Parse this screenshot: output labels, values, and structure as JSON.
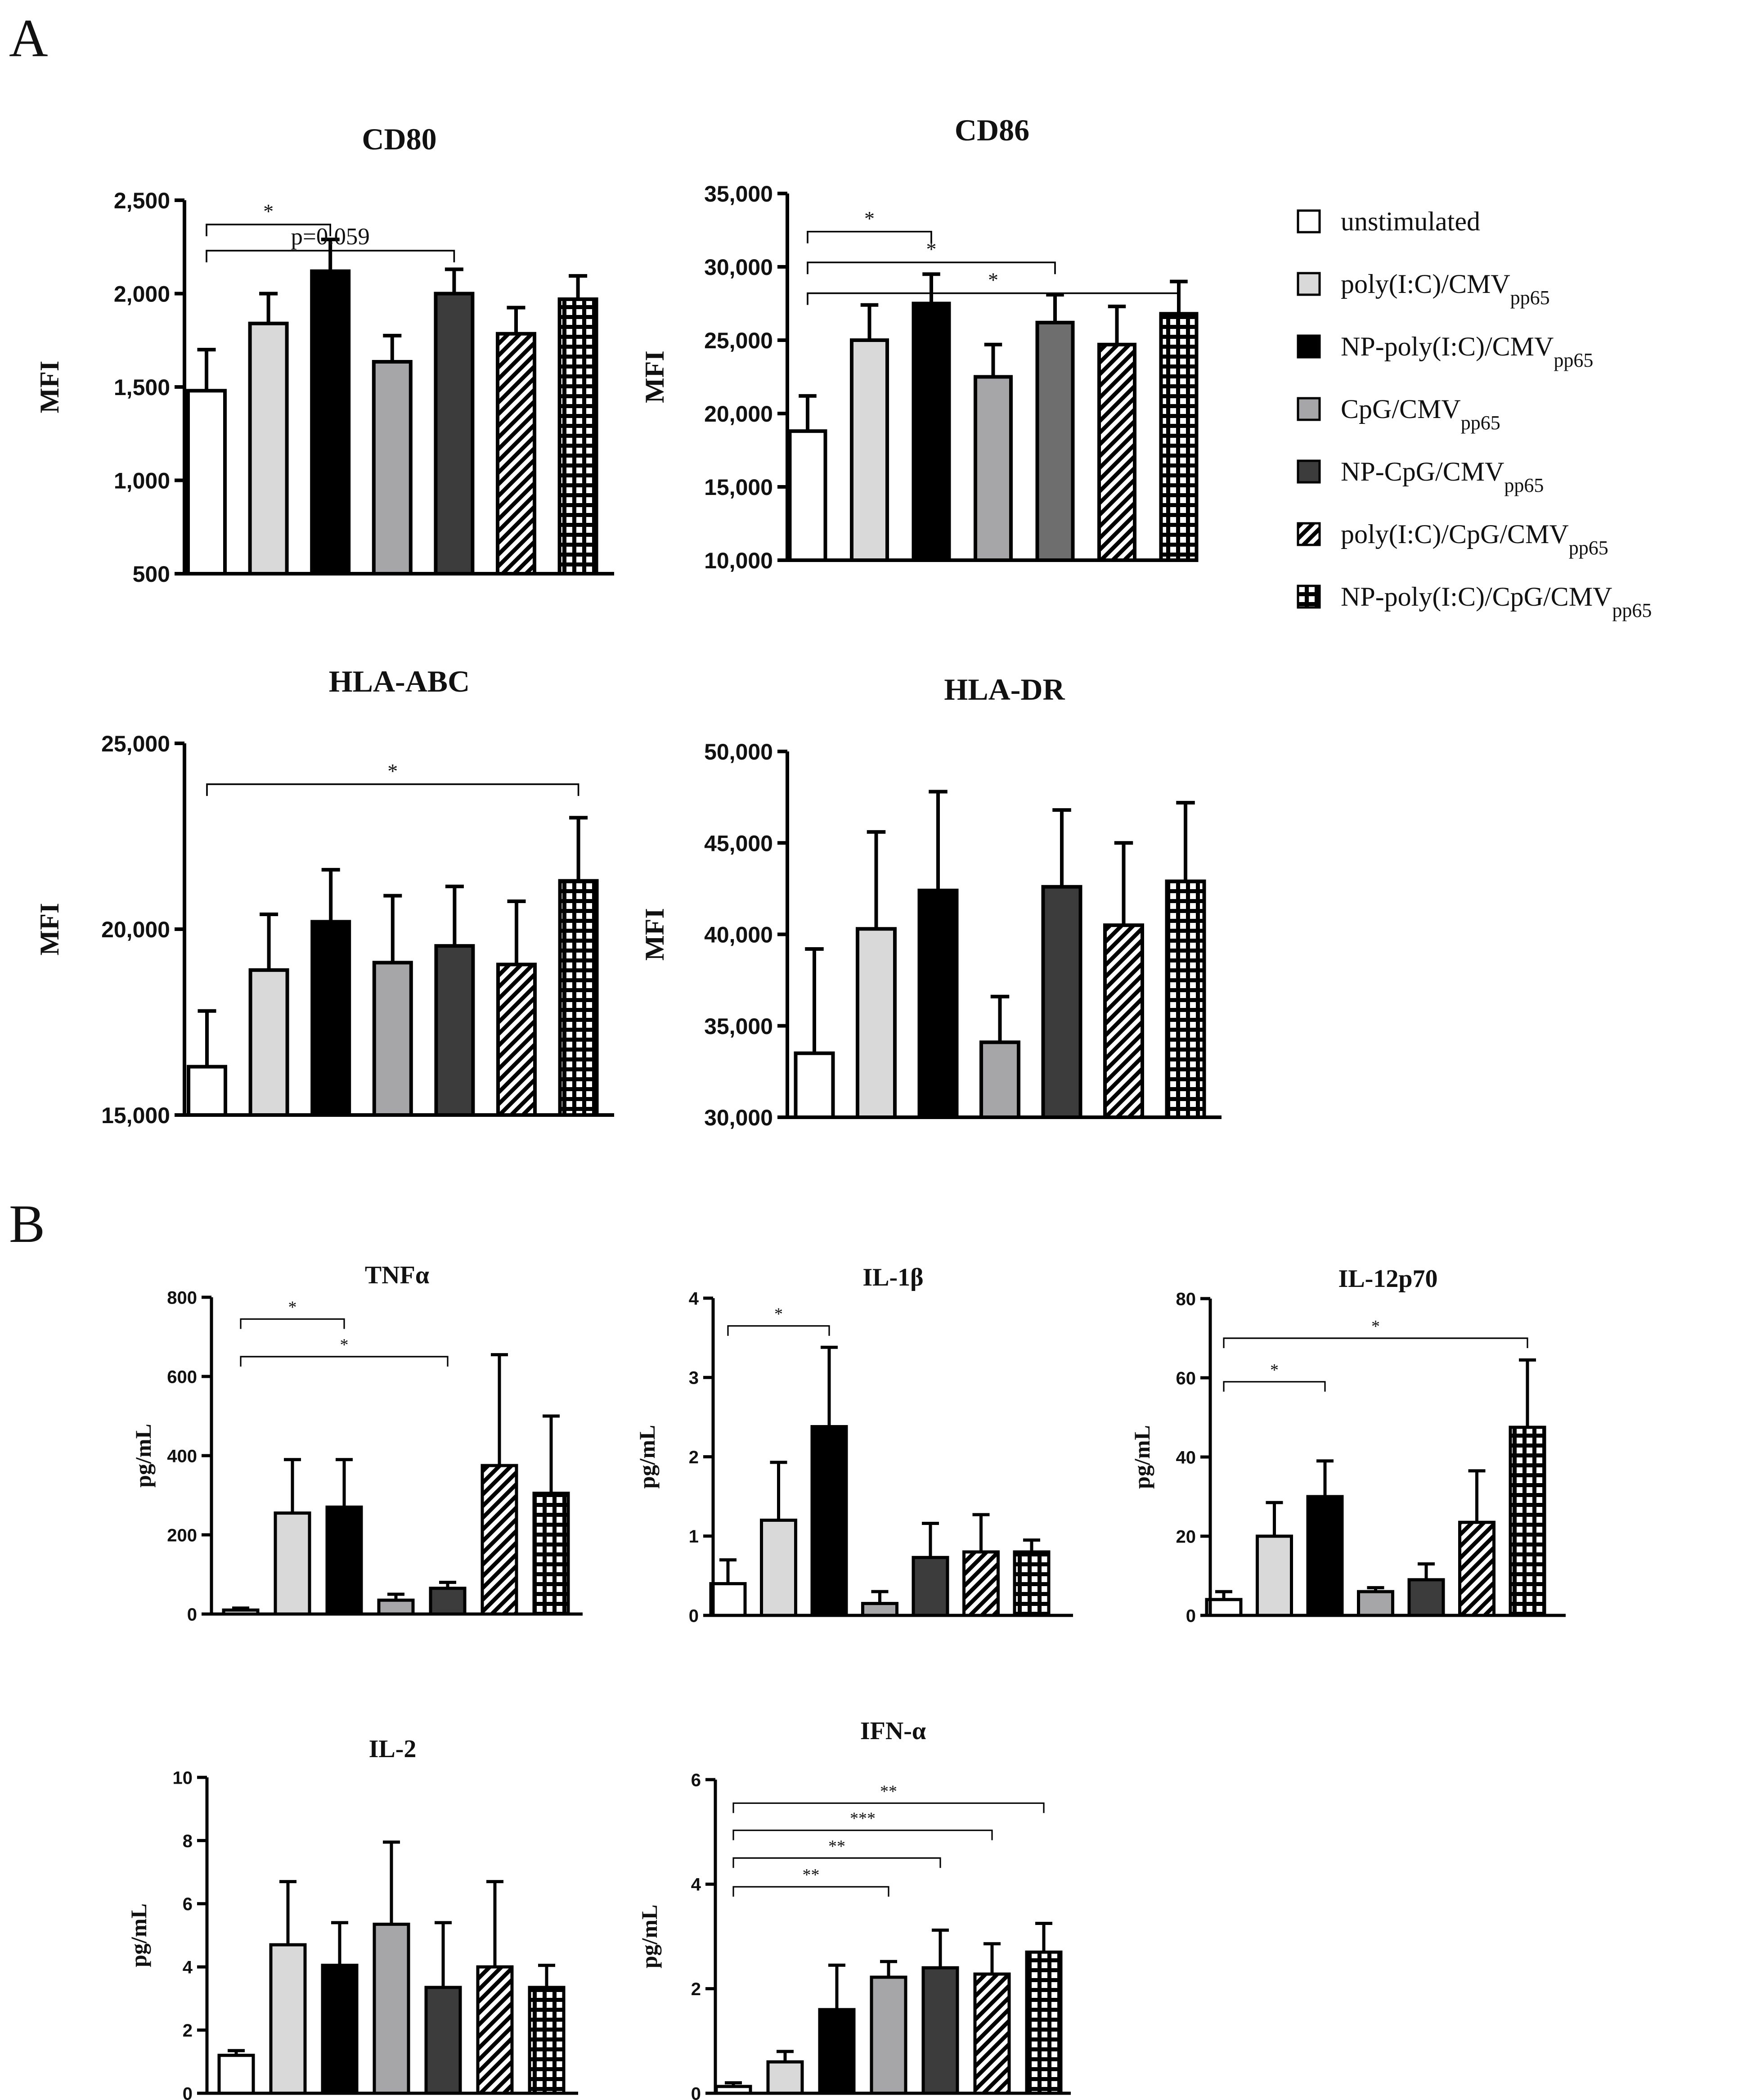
{
  "figure": {
    "panel_labels": [
      "A",
      "B"
    ],
    "legend": [
      {
        "id": "unstim",
        "label": "unstimulated",
        "sub": ""
      },
      {
        "id": "polyIC",
        "label": "poly(I:C)/CMV",
        "sub": "pp65"
      },
      {
        "id": "np_polyIC",
        "label": "NP-poly(I:C)/CMV",
        "sub": "pp65"
      },
      {
        "id": "cpg",
        "label": "CpG/CMV",
        "sub": "pp65"
      },
      {
        "id": "np_cpg",
        "label": "NP-CpG/CMV",
        "sub": "pp65"
      },
      {
        "id": "polyIC_cpg",
        "label": "poly(I:C)/CpG/CMV",
        "sub": "pp65"
      },
      {
        "id": "np_polyIC_cpg",
        "label": "NP-poly(I:C)/CpG/CMV",
        "sub": "pp65"
      }
    ],
    "fills": {
      "unstim": "#ffffff",
      "polyIC": "#d9d9d9",
      "np_polyIC": "#000000",
      "cpg": "#a6a6a8",
      "np_cpg": "#3c3c3c",
      "np_cpg_cd86": "#6e6e6e",
      "polyIC_cpg": "hatch",
      "np_polyIC_cpg": "grid"
    }
  },
  "chart_data": [
    {
      "type": "bar",
      "panel": "A",
      "title": "CD80",
      "ylabel": "MFI",
      "ylim": [
        500,
        2500
      ],
      "yticks": [
        500,
        1000,
        1500,
        2000,
        2500
      ],
      "yticklabels": [
        "500",
        "1,000",
        "1,500",
        "2,000",
        "2,500"
      ],
      "values": [
        1480,
        1840,
        2120,
        1635,
        2000,
        1785,
        1970
      ],
      "errors": [
        220,
        160,
        170,
        140,
        130,
        140,
        125
      ],
      "annotations": [
        {
          "from": 0,
          "to": 2,
          "label": "*",
          "level": 2370
        },
        {
          "from": 0,
          "to": 4,
          "label": "p=0.059",
          "level": 2230
        }
      ]
    },
    {
      "type": "bar",
      "panel": "A",
      "title": "CD86",
      "ylabel": "MFI",
      "ylim": [
        10000,
        35000
      ],
      "yticks": [
        10000,
        15000,
        20000,
        25000,
        30000,
        35000
      ],
      "yticklabels": [
        "10,000",
        "15,000",
        "20,000",
        "25,000",
        "30,000",
        "35,000"
      ],
      "values": [
        18800,
        25000,
        27500,
        22500,
        26200,
        24700,
        26800
      ],
      "errors": [
        2400,
        2400,
        2000,
        2200,
        1900,
        2600,
        2200
      ],
      "annotations": [
        {
          "from": 0,
          "to": 2,
          "label": "*",
          "level": 32400
        },
        {
          "from": 0,
          "to": 4,
          "label": "*",
          "level": 30300
        },
        {
          "from": 0,
          "to": 6,
          "label": "*",
          "level": 28200
        }
      ]
    },
    {
      "type": "bar",
      "panel": "A",
      "title": "HLA-ABC",
      "ylabel": "MFI",
      "ylim": [
        15000,
        25000
      ],
      "yticks": [
        15000,
        20000,
        25000
      ],
      "yticklabels": [
        "15,000",
        "20,000",
        "25,000"
      ],
      "values": [
        16300,
        18900,
        20200,
        19100,
        19550,
        19050,
        21300
      ],
      "errors": [
        1500,
        1500,
        1400,
        1800,
        1600,
        1700,
        1700
      ],
      "annotations": [
        {
          "from": 0,
          "to": 6,
          "label": "*",
          "level": 23900
        }
      ]
    },
    {
      "type": "bar",
      "panel": "A",
      "title": "HLA-DR",
      "ylabel": "MFI",
      "ylim": [
        30000,
        50000
      ],
      "yticks": [
        30000,
        35000,
        40000,
        45000,
        50000
      ],
      "yticklabels": [
        "30,000",
        "35,000",
        "40,000",
        "45,000",
        "50,000"
      ],
      "values": [
        33500,
        40300,
        42400,
        34100,
        42600,
        40500,
        42900
      ],
      "errors": [
        5700,
        5300,
        5400,
        2500,
        4200,
        4500,
        4300
      ],
      "annotations": []
    },
    {
      "type": "bar",
      "panel": "B",
      "title": "TNFα",
      "ylabel": "pg/mL",
      "ylim": [
        0,
        800
      ],
      "yticks": [
        0,
        200,
        400,
        600,
        800
      ],
      "yticklabels": [
        "0",
        "200",
        "400",
        "600",
        "800"
      ],
      "values": [
        10,
        255,
        270,
        35,
        65,
        375,
        305
      ],
      "errors": [
        5,
        135,
        120,
        15,
        15,
        280,
        195
      ],
      "annotations": [
        {
          "from": 0,
          "to": 2,
          "label": "*",
          "level": 745
        },
        {
          "from": 0,
          "to": 4,
          "label": "*",
          "level": 650
        }
      ]
    },
    {
      "type": "bar",
      "panel": "B",
      "title": "IL-1β",
      "ylabel": "pg/mL",
      "ylim": [
        0,
        4
      ],
      "yticks": [
        0,
        1,
        2,
        3,
        4
      ],
      "yticklabels": [
        "0",
        "1",
        "2",
        "3",
        "4"
      ],
      "values": [
        0.4,
        1.2,
        2.38,
        0.15,
        0.73,
        0.8,
        0.8
      ],
      "errors": [
        0.3,
        0.73,
        1.0,
        0.15,
        0.43,
        0.47,
        0.15
      ],
      "annotations": [
        {
          "from": 0,
          "to": 2,
          "label": "*",
          "level": 3.65
        }
      ]
    },
    {
      "type": "bar",
      "panel": "B",
      "title": "IL-12p70",
      "ylabel": "pg/mL",
      "ylim": [
        0,
        80
      ],
      "yticks": [
        0,
        20,
        40,
        60,
        80
      ],
      "yticklabels": [
        "0",
        "20",
        "40",
        "60",
        "80"
      ],
      "values": [
        4,
        20,
        30,
        6,
        9,
        23.5,
        47.5
      ],
      "errors": [
        2,
        8.5,
        9,
        1,
        4,
        13,
        17
      ],
      "annotations": [
        {
          "from": 0,
          "to": 6,
          "label": "*",
          "level": 70
        },
        {
          "from": 0,
          "to": 2,
          "label": "*",
          "level": 59
        }
      ]
    },
    {
      "type": "bar",
      "panel": "B",
      "title": "IL-2",
      "ylabel": "pg/mL",
      "ylim": [
        0,
        10
      ],
      "yticks": [
        0,
        2,
        4,
        6,
        8,
        10
      ],
      "yticklabels": [
        "0",
        "2",
        "4",
        "6",
        "8",
        "10"
      ],
      "values": [
        1.2,
        4.7,
        4.05,
        5.35,
        3.35,
        4.0,
        3.35
      ],
      "errors": [
        0.15,
        2.0,
        1.35,
        2.6,
        2.05,
        2.7,
        0.7
      ],
      "annotations": []
    },
    {
      "type": "bar",
      "panel": "B",
      "title": "IFN-α",
      "ylabel": "pg/mL",
      "ylim": [
        0,
        6
      ],
      "yticks": [
        0,
        2,
        4,
        6
      ],
      "yticklabels": [
        "0",
        "2",
        "4",
        "6"
      ],
      "values": [
        0.13,
        0.6,
        1.6,
        2.22,
        2.4,
        2.28,
        2.7
      ],
      "errors": [
        0.07,
        0.2,
        0.85,
        0.3,
        0.72,
        0.58,
        0.55
      ],
      "annotations": [
        {
          "from": 0,
          "to": 6,
          "label": "**",
          "level": 5.55
        },
        {
          "from": 0,
          "to": 5,
          "label": "***",
          "level": 5.03
        },
        {
          "from": 0,
          "to": 4,
          "label": "**",
          "level": 4.5
        },
        {
          "from": 0,
          "to": 3,
          "label": "**",
          "level": 3.95
        }
      ]
    }
  ]
}
